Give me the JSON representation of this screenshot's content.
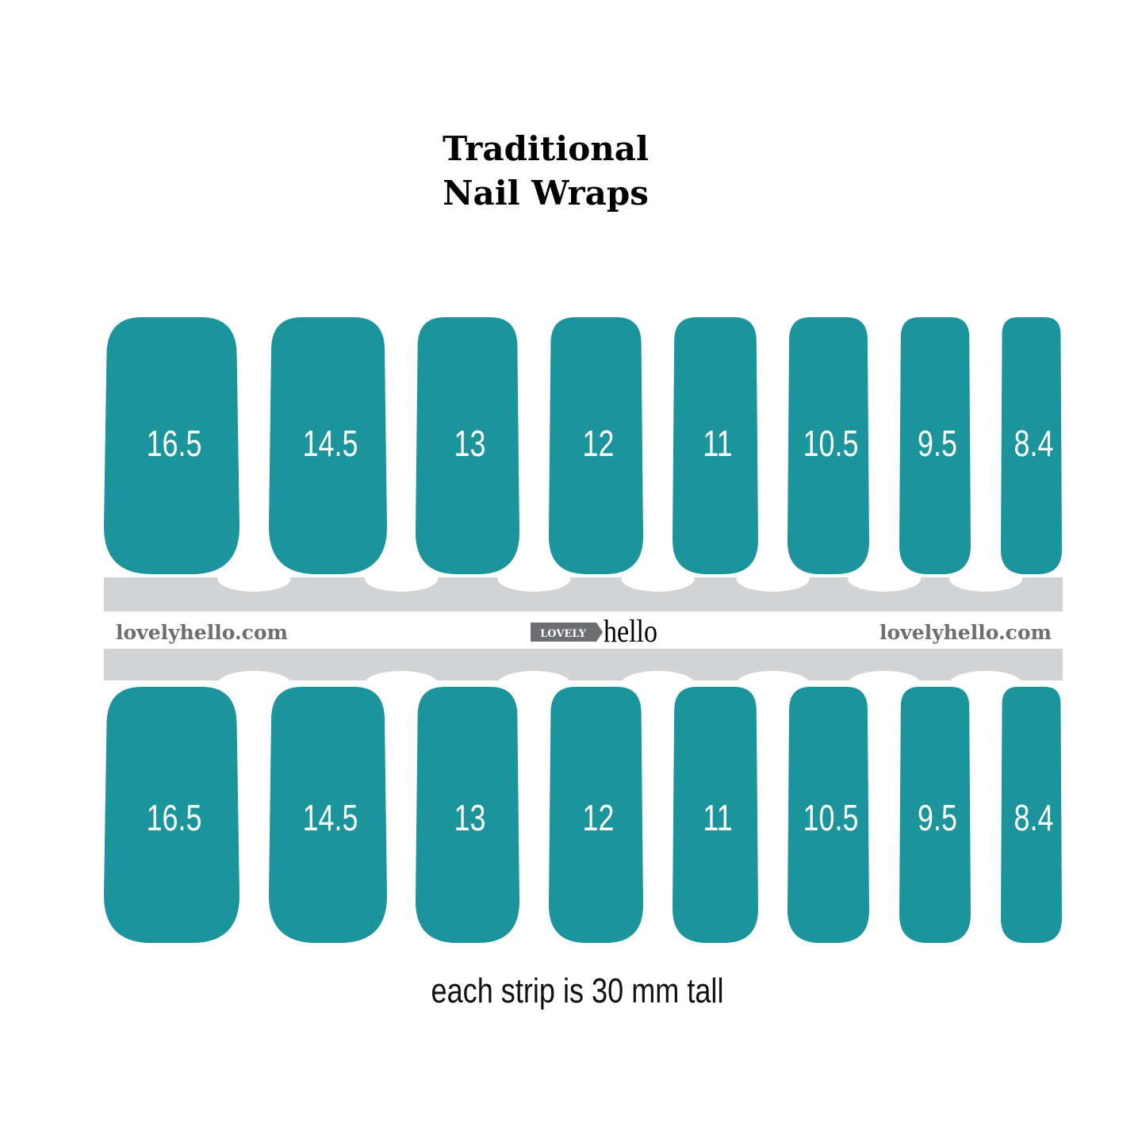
{
  "title": {
    "line1": "Traditional",
    "line2": "Nail Wraps"
  },
  "sizes": [
    "16.5",
    "14.5",
    "13",
    "12",
    "11",
    "10.5",
    "9.5",
    "8.4"
  ],
  "band": {
    "left_url": "lovelyhello.com",
    "right_url": "lovelyhello.com",
    "logo": {
      "badge": "LOVELY",
      "word": "hello"
    }
  },
  "caption": "each strip is 30 mm tall",
  "colors": {
    "nail": "#1b949b",
    "band": "#d1d3d4",
    "url_text": "#6d6e71",
    "logo_badge": "#6d6e71"
  }
}
